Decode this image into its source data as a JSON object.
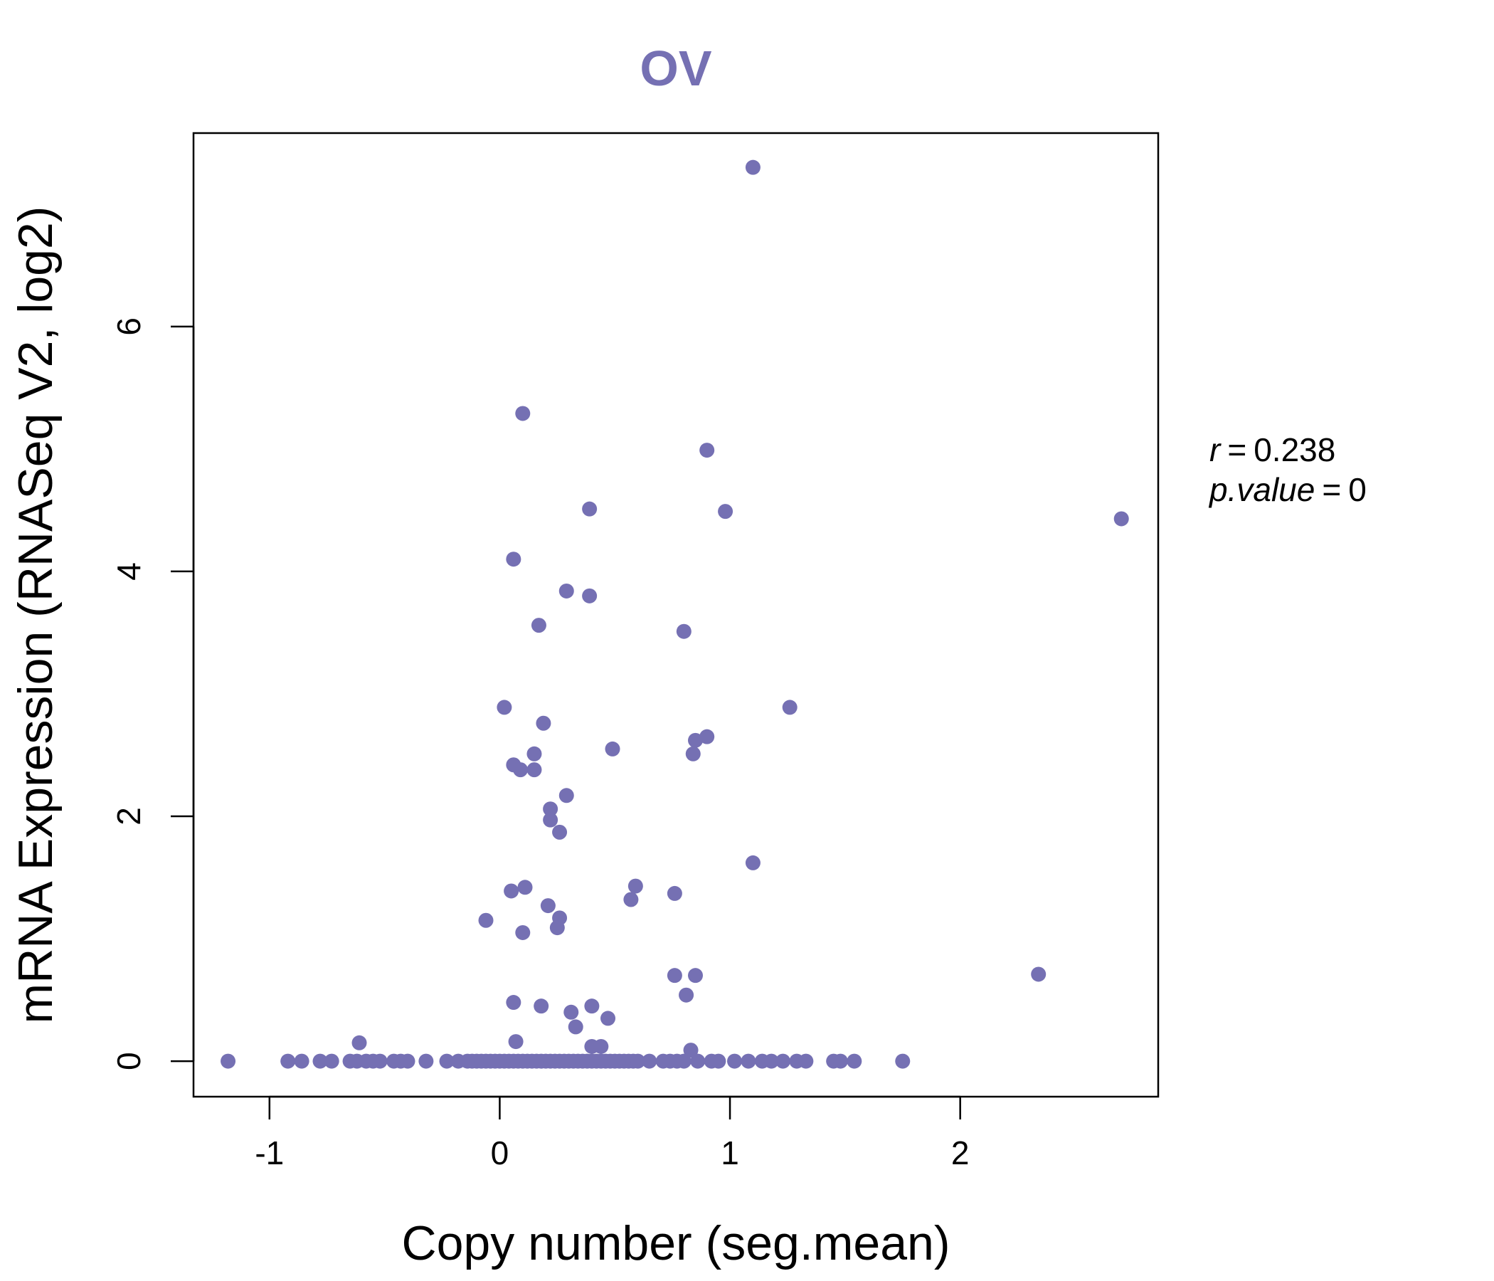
{
  "chart_data": {
    "type": "scatter",
    "title": "OV",
    "xlabel": "Copy number (seg.mean)",
    "ylabel": "mRNA Expression (RNASeq V2, log2)",
    "xlim": [
      -1.33,
      2.86
    ],
    "ylim": [
      -0.29,
      7.58
    ],
    "xticks": [
      -1,
      0,
      1,
      2
    ],
    "xtick_labels": [
      "-1",
      "0",
      "1",
      "2"
    ],
    "yticks": [
      0,
      2,
      4,
      6
    ],
    "ytick_labels": [
      "0",
      "2",
      "4",
      "6"
    ],
    "grid": false,
    "legend": "none",
    "point_color": "#7570b3",
    "title_color": "#7570b3",
    "stats": {
      "r_label": "r",
      "r_value": "0.238",
      "p_label": "p.value",
      "p_value": "0"
    },
    "points": [
      {
        "x": 1.1,
        "y": 7.3
      },
      {
        "x": 0.1,
        "y": 5.29
      },
      {
        "x": 0.9,
        "y": 4.99
      },
      {
        "x": 0.39,
        "y": 4.51
      },
      {
        "x": 0.98,
        "y": 4.49
      },
      {
        "x": 2.7,
        "y": 4.43
      },
      {
        "x": 0.06,
        "y": 4.1
      },
      {
        "x": 0.29,
        "y": 3.84
      },
      {
        "x": 0.39,
        "y": 3.8
      },
      {
        "x": 0.17,
        "y": 3.56
      },
      {
        "x": 0.8,
        "y": 3.51
      },
      {
        "x": 0.02,
        "y": 2.89
      },
      {
        "x": 1.26,
        "y": 2.89
      },
      {
        "x": 0.19,
        "y": 2.76
      },
      {
        "x": 0.9,
        "y": 2.65
      },
      {
        "x": 0.85,
        "y": 2.62
      },
      {
        "x": 0.49,
        "y": 2.55
      },
      {
        "x": 0.15,
        "y": 2.51
      },
      {
        "x": 0.84,
        "y": 2.51
      },
      {
        "x": 0.06,
        "y": 2.42
      },
      {
        "x": 0.09,
        "y": 2.38
      },
      {
        "x": 0.15,
        "y": 2.38
      },
      {
        "x": 0.29,
        "y": 2.17
      },
      {
        "x": 0.22,
        "y": 2.06
      },
      {
        "x": 0.22,
        "y": 1.97
      },
      {
        "x": 0.26,
        "y": 1.87
      },
      {
        "x": 1.1,
        "y": 1.62
      },
      {
        "x": 0.59,
        "y": 1.43
      },
      {
        "x": 0.11,
        "y": 1.42
      },
      {
        "x": 0.05,
        "y": 1.39
      },
      {
        "x": 0.76,
        "y": 1.37
      },
      {
        "x": 0.57,
        "y": 1.32
      },
      {
        "x": 0.21,
        "y": 1.27
      },
      {
        "x": 0.26,
        "y": 1.17
      },
      {
        "x": -0.06,
        "y": 1.15
      },
      {
        "x": 0.25,
        "y": 1.09
      },
      {
        "x": 0.1,
        "y": 1.05
      },
      {
        "x": 2.34,
        "y": 0.71
      },
      {
        "x": 0.76,
        "y": 0.7
      },
      {
        "x": 0.85,
        "y": 0.7
      },
      {
        "x": 0.81,
        "y": 0.54
      },
      {
        "x": 0.06,
        "y": 0.48
      },
      {
        "x": 0.18,
        "y": 0.45
      },
      {
        "x": 0.4,
        "y": 0.45
      },
      {
        "x": 0.31,
        "y": 0.4
      },
      {
        "x": 0.47,
        "y": 0.35
      },
      {
        "x": 0.33,
        "y": 0.28
      },
      {
        "x": 0.07,
        "y": 0.16
      },
      {
        "x": -0.61,
        "y": 0.15
      },
      {
        "x": 0.4,
        "y": 0.12
      },
      {
        "x": 0.44,
        "y": 0.12
      },
      {
        "x": 0.83,
        "y": 0.09
      },
      {
        "x": -1.18,
        "y": 0
      },
      {
        "x": -0.92,
        "y": 0
      },
      {
        "x": -0.86,
        "y": 0
      },
      {
        "x": -0.78,
        "y": 0
      },
      {
        "x": -0.73,
        "y": 0
      },
      {
        "x": -0.65,
        "y": 0
      },
      {
        "x": -0.62,
        "y": 0
      },
      {
        "x": -0.58,
        "y": 0
      },
      {
        "x": -0.55,
        "y": 0
      },
      {
        "x": -0.52,
        "y": 0
      },
      {
        "x": -0.46,
        "y": 0
      },
      {
        "x": -0.43,
        "y": 0
      },
      {
        "x": -0.4,
        "y": 0
      },
      {
        "x": -0.32,
        "y": 0
      },
      {
        "x": -0.23,
        "y": 0
      },
      {
        "x": -0.18,
        "y": 0
      },
      {
        "x": -0.14,
        "y": 0
      },
      {
        "x": -0.12,
        "y": 0
      },
      {
        "x": -0.1,
        "y": 0
      },
      {
        "x": -0.08,
        "y": 0
      },
      {
        "x": -0.06,
        "y": 0
      },
      {
        "x": -0.04,
        "y": 0
      },
      {
        "x": -0.02,
        "y": 0
      },
      {
        "x": 0.0,
        "y": 0
      },
      {
        "x": 0.02,
        "y": 0
      },
      {
        "x": 0.04,
        "y": 0
      },
      {
        "x": 0.06,
        "y": 0
      },
      {
        "x": 0.08,
        "y": 0
      },
      {
        "x": 0.1,
        "y": 0
      },
      {
        "x": 0.12,
        "y": 0
      },
      {
        "x": 0.14,
        "y": 0
      },
      {
        "x": 0.16,
        "y": 0
      },
      {
        "x": 0.18,
        "y": 0
      },
      {
        "x": 0.2,
        "y": 0
      },
      {
        "x": 0.22,
        "y": 0
      },
      {
        "x": 0.24,
        "y": 0
      },
      {
        "x": 0.26,
        "y": 0
      },
      {
        "x": 0.28,
        "y": 0
      },
      {
        "x": 0.3,
        "y": 0
      },
      {
        "x": 0.32,
        "y": 0
      },
      {
        "x": 0.34,
        "y": 0
      },
      {
        "x": 0.36,
        "y": 0
      },
      {
        "x": 0.38,
        "y": 0
      },
      {
        "x": 0.4,
        "y": 0
      },
      {
        "x": 0.42,
        "y": 0
      },
      {
        "x": 0.44,
        "y": 0
      },
      {
        "x": 0.46,
        "y": 0
      },
      {
        "x": 0.48,
        "y": 0
      },
      {
        "x": 0.5,
        "y": 0
      },
      {
        "x": 0.52,
        "y": 0
      },
      {
        "x": 0.54,
        "y": 0
      },
      {
        "x": 0.56,
        "y": 0
      },
      {
        "x": 0.58,
        "y": 0
      },
      {
        "x": 0.6,
        "y": 0
      },
      {
        "x": 0.65,
        "y": 0
      },
      {
        "x": 0.71,
        "y": 0
      },
      {
        "x": 0.74,
        "y": 0
      },
      {
        "x": 0.77,
        "y": 0
      },
      {
        "x": 0.8,
        "y": 0
      },
      {
        "x": 0.86,
        "y": 0
      },
      {
        "x": 0.92,
        "y": 0
      },
      {
        "x": 0.95,
        "y": 0
      },
      {
        "x": 1.02,
        "y": 0
      },
      {
        "x": 1.08,
        "y": 0
      },
      {
        "x": 1.14,
        "y": 0
      },
      {
        "x": 1.18,
        "y": 0
      },
      {
        "x": 1.23,
        "y": 0
      },
      {
        "x": 1.29,
        "y": 0
      },
      {
        "x": 1.33,
        "y": 0
      },
      {
        "x": 1.45,
        "y": 0
      },
      {
        "x": 1.48,
        "y": 0
      },
      {
        "x": 1.54,
        "y": 0
      },
      {
        "x": 1.75,
        "y": 0
      }
    ]
  }
}
